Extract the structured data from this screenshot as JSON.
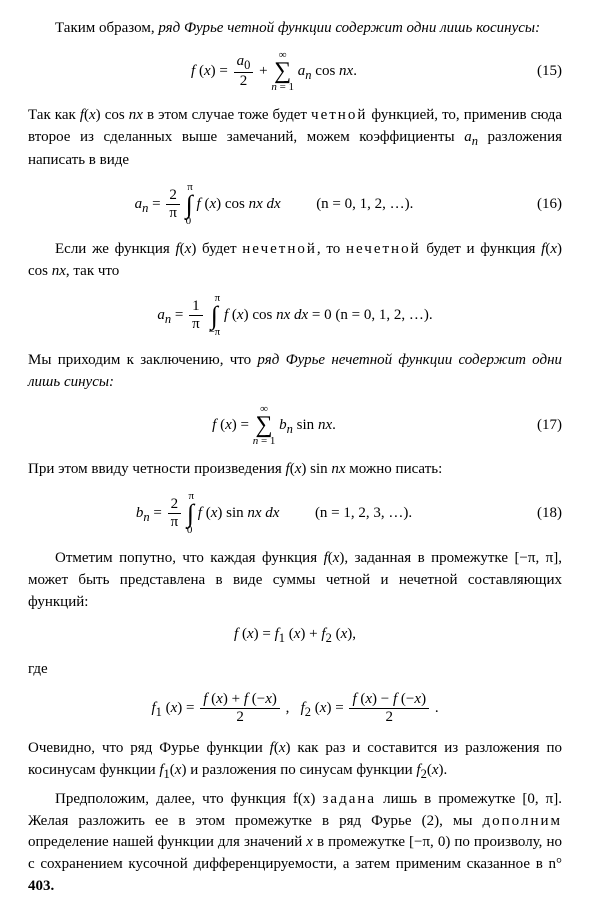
{
  "p1_a": "Таким образом, ",
  "p1_b": "ряд Фурье четной функции содержит одни лишь косинусы:",
  "eq15_num": "(15)",
  "p2": "Так как f(x) cos nx в этом случае тоже будет ч е т н о й функцией, то, применив сюда второе из сделанных выше замечаний, можем коэффициенты aₙ разложения написать в виде",
  "eq16_num": "(16)",
  "eq16_range": "(n = 0, 1, 2, …).",
  "p3": "Если же функция f(x) будет н е ч е т н о й, то н е ч е т н о й будет и функция f(x) cos nx, так что",
  "eq_an0_range": "(n = 0, 1, 2, …).",
  "p4_a": "Мы приходим к заключению, что ",
  "p4_b": "ряд Фурье нечетной функции содержит одни лишь синусы:",
  "eq17_num": "(17)",
  "p5": "При этом ввиду четности произведения f(x) sin nx можно писать:",
  "eq18_num": "(18)",
  "eq18_range": "(n = 1, 2, 3, …).",
  "p6": "Отметим попутно, что каждая функция f(x), заданная в промежутке [−π, π], может быть представлена в виде суммы четной и нечетной составляющих функций:",
  "eq_f12": "f (x) = f₁ (x) + f₂ (x),",
  "p_gde": "где",
  "p7": "Очевидно, что ряд Фурье функции f(x) как раз и составится из разложения по косинусам функции f₁(x) и разложения по синусам функции f₂(x).",
  "p8_a": "Предположим, далее, что функция f(x) ",
  "p8_b": "задана",
  "p8_c": " лишь в промежутке [0, π]. Желая разложить ее в этом промежутке в ряд Фурье (2), мы ",
  "p8_d": "дополним",
  "p8_e": " определение нашей функции для значений x в промежутке [−π, 0) по произволу, но с сохранением кусочной дифференцируемости, а затем применим сказанное в n° ",
  "p8_f": "403."
}
